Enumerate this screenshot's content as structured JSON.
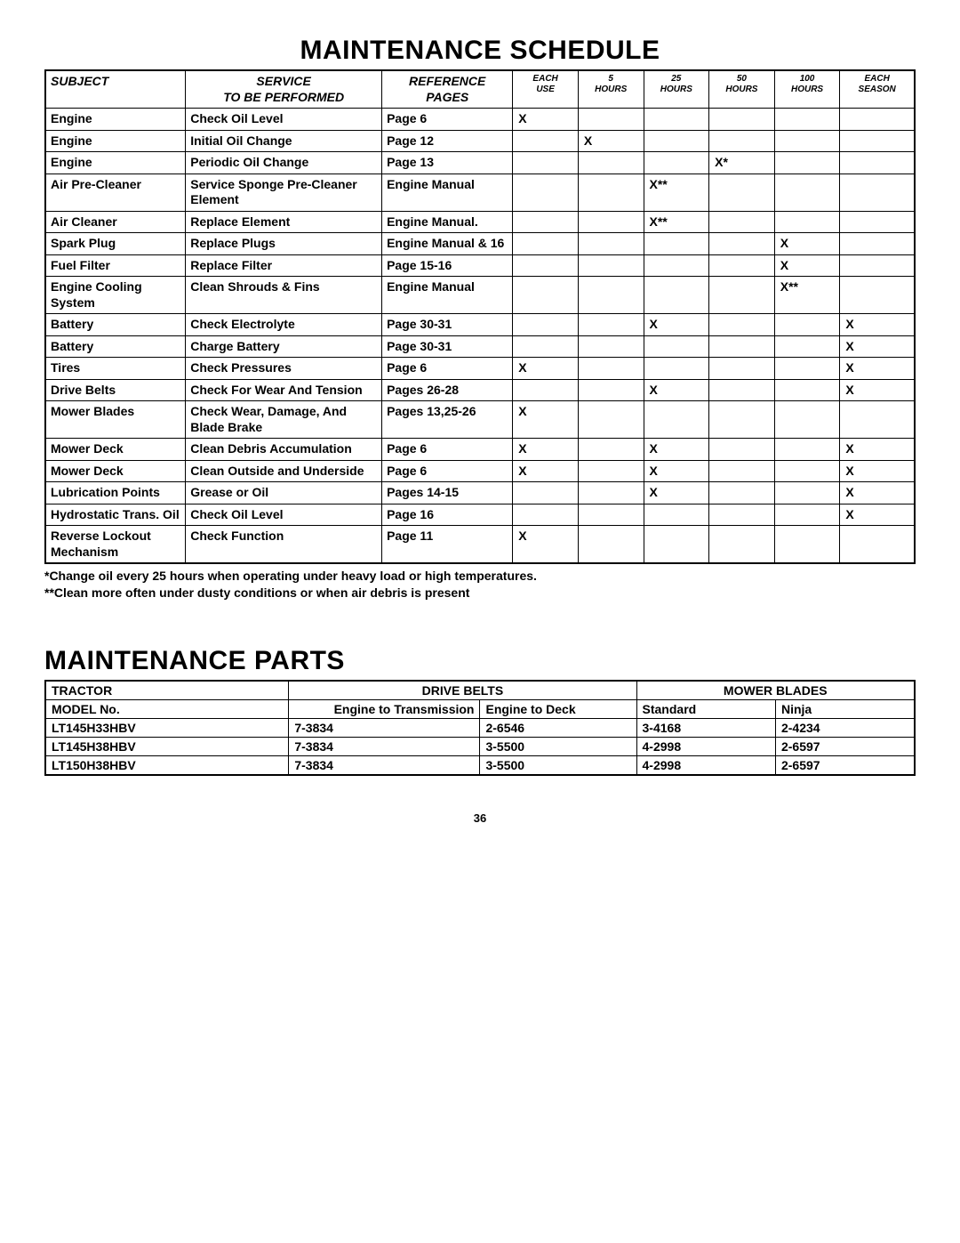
{
  "titles": {
    "schedule": "MAINTENANCE SCHEDULE",
    "parts": "MAINTENANCE PARTS"
  },
  "schedule": {
    "headers": {
      "subject": "SUBJECT",
      "service": "SERVICE\nTO BE PERFORMED",
      "reference": "REFERENCE\nPAGES",
      "each_use": "EACH\nUSE",
      "h5": "5\nHOURS",
      "h25": "25\nHOURS",
      "h50": "50\nHOURS",
      "h100": "100\nHOURS",
      "each_season": "EACH\nSEASON"
    },
    "rows": [
      {
        "subject": "Engine",
        "service": "Check Oil Level",
        "reference": "Page 6",
        "each_use": "X",
        "h5": "",
        "h25": "",
        "h50": "",
        "h100": "",
        "season": ""
      },
      {
        "subject": "Engine",
        "service": "Initial Oil Change",
        "reference": "Page 12",
        "each_use": "",
        "h5": "X",
        "h25": "",
        "h50": "",
        "h100": "",
        "season": ""
      },
      {
        "subject": "Engine",
        "service": "Periodic Oil Change",
        "reference": "Page 13",
        "each_use": "",
        "h5": "",
        "h25": "",
        "h50": "X*",
        "h100": "",
        "season": ""
      },
      {
        "subject": "Air Pre-Cleaner",
        "service": "Service Sponge Pre-Cleaner Element",
        "reference": "Engine Manual",
        "each_use": "",
        "h5": "",
        "h25": "X**",
        "h50": "",
        "h100": "",
        "season": ""
      },
      {
        "subject": "Air Cleaner",
        "service": "Replace Element",
        "reference": "Engine Manual.",
        "each_use": "",
        "h5": "",
        "h25": "X**",
        "h50": "",
        "h100": "",
        "season": ""
      },
      {
        "subject": "Spark Plug",
        "service": "Replace Plugs",
        "reference": "Engine Manual & 16",
        "each_use": "",
        "h5": "",
        "h25": "",
        "h50": "",
        "h100": "X",
        "season": ""
      },
      {
        "subject": "Fuel Filter",
        "service": "Replace Filter",
        "reference": "Page 15-16",
        "each_use": "",
        "h5": "",
        "h25": "",
        "h50": "",
        "h100": "X",
        "season": ""
      },
      {
        "subject": "Engine Cooling System",
        "service": "Clean Shrouds & Fins",
        "reference": "Engine Manual",
        "each_use": "",
        "h5": "",
        "h25": "",
        "h50": "",
        "h100": "X**",
        "season": ""
      },
      {
        "subject": "Battery",
        "service": "Check Electrolyte",
        "reference": "Page 30-31",
        "each_use": "",
        "h5": "",
        "h25": "X",
        "h50": "",
        "h100": "",
        "season": "X"
      },
      {
        "subject": "Battery",
        "service": "Charge Battery",
        "reference": "Page 30-31",
        "each_use": "",
        "h5": "",
        "h25": "",
        "h50": "",
        "h100": "",
        "season": "X"
      },
      {
        "subject": "Tires",
        "service": "Check Pressures",
        "reference": "Page 6",
        "each_use": "X",
        "h5": "",
        "h25": "",
        "h50": "",
        "h100": "",
        "season": "X"
      },
      {
        "subject": "Drive Belts",
        "service": "Check For Wear And Tension",
        "reference": "Pages 26-28",
        "each_use": "",
        "h5": "",
        "h25": "X",
        "h50": "",
        "h100": "",
        "season": "X"
      },
      {
        "subject": "Mower Blades",
        "service": "Check Wear, Damage, And Blade Brake",
        "reference": "Pages 13,25-26",
        "each_use": "X",
        "h5": "",
        "h25": "",
        "h50": "",
        "h100": "",
        "season": ""
      },
      {
        "subject": "Mower Deck",
        "service": "Clean Debris Accumulation",
        "reference": "Page 6",
        "each_use": "X",
        "h5": "",
        "h25": "X",
        "h50": "",
        "h100": "",
        "season": "X"
      },
      {
        "subject": "Mower Deck",
        "service": "Clean Outside and Underside",
        "reference": "Page 6",
        "each_use": "X",
        "h5": "",
        "h25": "X",
        "h50": "",
        "h100": "",
        "season": "X"
      },
      {
        "subject": "Lubrication Points",
        "service": "Grease or Oil",
        "reference": "Pages 14-15",
        "each_use": "",
        "h5": "",
        "h25": "X",
        "h50": "",
        "h100": "",
        "season": "X"
      },
      {
        "subject": "Hydrostatic Trans. Oil",
        "service": "Check Oil Level",
        "reference": "Page 16",
        "each_use": "",
        "h5": "",
        "h25": "",
        "h50": "",
        "h100": "",
        "season": "X"
      },
      {
        "subject": "Reverse Lockout Mechanism",
        "service": "Check Function",
        "reference": "Page 11",
        "each_use": "X",
        "h5": "",
        "h25": "",
        "h50": "",
        "h100": "",
        "season": ""
      }
    ]
  },
  "notes": {
    "n1": "*Change oil every 25 hours when operating under heavy load or high temperatures.",
    "n2": "**Clean more often under dusty conditions or when air debris is present"
  },
  "parts": {
    "header1": {
      "tractor": "TRACTOR",
      "drive_belts": "DRIVE BELTS",
      "mower_blades": "MOWER BLADES"
    },
    "header2": {
      "model": "MODEL No.",
      "eng_trans": "Engine to Transmission",
      "eng_deck": "Engine to Deck",
      "standard": "Standard",
      "ninja": "Ninja"
    },
    "rows": [
      {
        "model": "LT145H33HBV",
        "eng_trans": "7-3834",
        "eng_deck": "2-6546",
        "standard": "3-4168",
        "ninja": "2-4234"
      },
      {
        "model": "LT145H38HBV",
        "eng_trans": "7-3834",
        "eng_deck": "3-5500",
        "standard": "4-2998",
        "ninja": "2-6597"
      },
      {
        "model": "LT150H38HBV",
        "eng_trans": "7-3834",
        "eng_deck": "3-5500",
        "standard": "4-2998",
        "ninja": "2-6597"
      }
    ]
  },
  "page_number": "36"
}
